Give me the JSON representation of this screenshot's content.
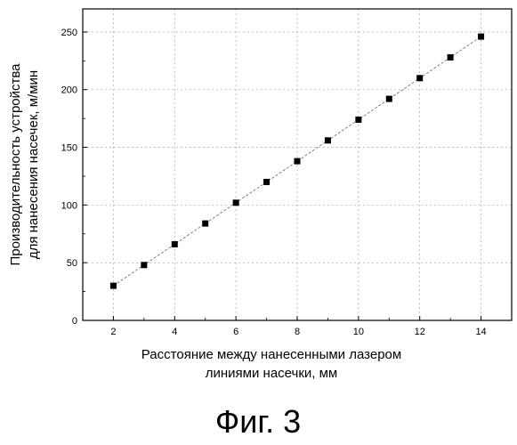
{
  "chart_data": {
    "type": "scatter",
    "title": "",
    "xlabel": [
      "Расстояние между нанесенными лазером",
      "линиями насечки, мм"
    ],
    "ylabel": [
      "Производительность устройства",
      "для нанесения насечек, м/мин"
    ],
    "x": [
      2,
      3,
      4,
      5,
      6,
      7,
      8,
      9,
      10,
      11,
      12,
      13,
      14
    ],
    "y": [
      30,
      48,
      66,
      84,
      102,
      120,
      138,
      156,
      174,
      192,
      210,
      228,
      246
    ],
    "xlim": [
      1,
      15
    ],
    "ylim": [
      0,
      270
    ],
    "xticks": [
      2,
      4,
      6,
      8,
      10,
      12,
      14
    ],
    "yticks": [
      0,
      50,
      100,
      150,
      200,
      250
    ],
    "grid": true,
    "trend_line": true,
    "marker": "square",
    "color": "#000000"
  },
  "caption": "Фиг. 3"
}
